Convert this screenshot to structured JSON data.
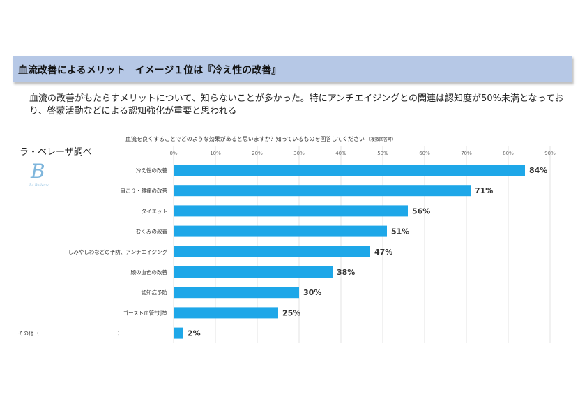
{
  "header": {
    "title": "血流改善によるメリット　イメージ１位は『冷え性の改善』"
  },
  "summary": {
    "text": "血流の改善がもたらすメリットについて、知らないことが多かった。特にアンチエイジングとの関連は認知度が50%未満となっており、啓蒙活動などによる認知強化が重要と思われる"
  },
  "source": {
    "label": "ラ・ベレーザ調べ",
    "logo_letter": "B",
    "logo_text": "La Bellezza"
  },
  "chart_data": {
    "type": "bar",
    "orientation": "horizontal",
    "title": "血流を良くすることでどのような効果があると思いますか？知っているものを回答してください",
    "title_note": "（複数回答可）",
    "categories": [
      "冷え性の改善",
      "肩こり・腰痛の改善",
      "ダイエット",
      "むくみの改善",
      "しみやしわなどの予防、アンチエイジング",
      "顔の血色の改善",
      "認知症予防",
      "ゴースト血管*対策",
      "その他（　　　　　　　　　　　　　　　）"
    ],
    "values": [
      84,
      71,
      56,
      51,
      47,
      38,
      30,
      25,
      2
    ],
    "value_labels": [
      "84%",
      "71%",
      "56%",
      "51%",
      "47%",
      "38%",
      "30%",
      "25%",
      "2%"
    ],
    "xlim": [
      0,
      90
    ],
    "ticks": [
      0,
      10,
      20,
      30,
      40,
      50,
      60,
      70,
      80,
      90
    ],
    "tick_labels": [
      "0%",
      "10%",
      "20%",
      "30%",
      "40%",
      "50%",
      "60%",
      "70%",
      "80%",
      "90%"
    ],
    "grid": true,
    "bar_color": "#1ea7e8"
  }
}
